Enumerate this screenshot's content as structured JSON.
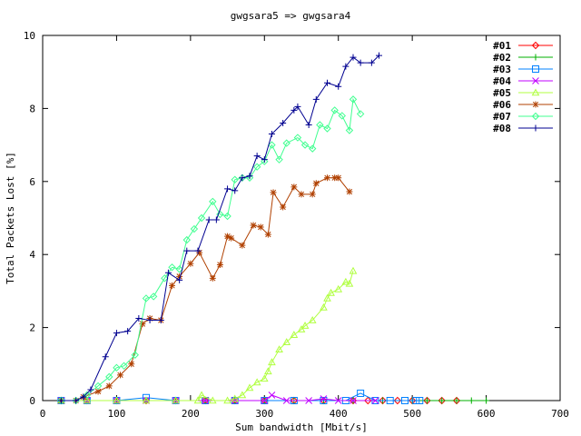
{
  "chart_data": {
    "type": "line",
    "title": "gwgsara5 => gwgsara4",
    "xlabel": "Sum bandwidth [Mbit/s]",
    "ylabel": "Total Packets Lost [%]",
    "xlim": [
      0,
      700
    ],
    "ylim": [
      0,
      10
    ],
    "x_ticks": [
      "0",
      "100",
      "200",
      "300",
      "400",
      "500",
      "600",
      "700"
    ],
    "y_ticks": [
      "0",
      "2",
      "4",
      "6",
      "8",
      "10"
    ],
    "grid": false,
    "legend_position": "top-right",
    "series": [
      {
        "name": "#01",
        "color": "#ff0000",
        "marker": "diamond",
        "points": [
          [
            25,
            0
          ],
          [
            60,
            0
          ],
          [
            100,
            0
          ],
          [
            140,
            0
          ],
          [
            180,
            0
          ],
          [
            220,
            0
          ],
          [
            260,
            0
          ],
          [
            300,
            0
          ],
          [
            340,
            0
          ],
          [
            380,
            0
          ],
          [
            420,
            0
          ],
          [
            440,
            0
          ],
          [
            460,
            0
          ],
          [
            480,
            0
          ],
          [
            500,
            0
          ],
          [
            520,
            0
          ],
          [
            540,
            0
          ],
          [
            560,
            0
          ]
        ]
      },
      {
        "name": "#02",
        "color": "#00b000",
        "marker": "plus",
        "points": [
          [
            25,
            0
          ],
          [
            60,
            0
          ],
          [
            100,
            0
          ],
          [
            140,
            0
          ],
          [
            180,
            0
          ],
          [
            220,
            0
          ],
          [
            260,
            0
          ],
          [
            300,
            0
          ],
          [
            340,
            0
          ],
          [
            380,
            0
          ],
          [
            420,
            0
          ],
          [
            460,
            0
          ],
          [
            500,
            0
          ],
          [
            520,
            0
          ],
          [
            540,
            0
          ],
          [
            560,
            0
          ],
          [
            580,
            0
          ],
          [
            600,
            0
          ]
        ]
      },
      {
        "name": "#03",
        "color": "#0080ff",
        "marker": "square",
        "points": [
          [
            25,
            0
          ],
          [
            60,
            0
          ],
          [
            100,
            0
          ],
          [
            140,
            0.08
          ],
          [
            180,
            0
          ],
          [
            220,
            0
          ],
          [
            260,
            0
          ],
          [
            300,
            0
          ],
          [
            340,
            0
          ],
          [
            380,
            0
          ],
          [
            410,
            0
          ],
          [
            430,
            0.2
          ],
          [
            450,
            0
          ],
          [
            470,
            0
          ],
          [
            490,
            0
          ],
          [
            505,
            0
          ],
          [
            510,
            0
          ]
        ]
      },
      {
        "name": "#04",
        "color": "#c000ff",
        "marker": "cross",
        "points": [
          [
            25,
            0
          ],
          [
            60,
            0
          ],
          [
            100,
            0
          ],
          [
            140,
            0
          ],
          [
            180,
            0
          ],
          [
            220,
            0
          ],
          [
            260,
            0
          ],
          [
            300,
            0
          ],
          [
            310,
            0.15
          ],
          [
            330,
            0
          ],
          [
            360,
            0
          ],
          [
            380,
            0.05
          ],
          [
            400,
            0
          ],
          [
            420,
            0
          ],
          [
            450,
            0
          ]
        ]
      },
      {
        "name": "#05",
        "color": "#b0ff40",
        "marker": "triangle",
        "points": [
          [
            25,
            0
          ],
          [
            60,
            0
          ],
          [
            100,
            0
          ],
          [
            140,
            0
          ],
          [
            180,
            0
          ],
          [
            210,
            0
          ],
          [
            215,
            0.15
          ],
          [
            230,
            0
          ],
          [
            250,
            0
          ],
          [
            260,
            0.05
          ],
          [
            270,
            0.15
          ],
          [
            280,
            0.35
          ],
          [
            290,
            0.5
          ],
          [
            300,
            0.6
          ],
          [
            305,
            0.8
          ],
          [
            310,
            1.05
          ],
          [
            320,
            1.4
          ],
          [
            330,
            1.6
          ],
          [
            340,
            1.8
          ],
          [
            350,
            1.95
          ],
          [
            355,
            2.05
          ],
          [
            365,
            2.2
          ],
          [
            380,
            2.55
          ],
          [
            385,
            2.8
          ],
          [
            390,
            2.95
          ],
          [
            400,
            3.05
          ],
          [
            410,
            3.25
          ],
          [
            415,
            3.2
          ],
          [
            420,
            3.55
          ]
        ]
      },
      {
        "name": "#06",
        "color": "#b04000",
        "marker": "star",
        "points": [
          [
            25,
            0
          ],
          [
            45,
            0
          ],
          [
            55,
            0.1
          ],
          [
            75,
            0.25
          ],
          [
            90,
            0.4
          ],
          [
            105,
            0.7
          ],
          [
            120,
            1.0
          ],
          [
            135,
            2.1
          ],
          [
            145,
            2.25
          ],
          [
            160,
            2.2
          ],
          [
            175,
            3.15
          ],
          [
            185,
            3.4
          ],
          [
            200,
            3.75
          ],
          [
            212,
            4.05
          ],
          [
            230,
            3.35
          ],
          [
            240,
            3.72
          ],
          [
            250,
            4.5
          ],
          [
            255,
            4.45
          ],
          [
            270,
            4.25
          ],
          [
            285,
            4.8
          ],
          [
            295,
            4.75
          ],
          [
            305,
            4.55
          ],
          [
            312,
            5.7
          ],
          [
            325,
            5.3
          ],
          [
            340,
            5.85
          ],
          [
            350,
            5.65
          ],
          [
            365,
            5.65
          ],
          [
            370,
            5.95
          ],
          [
            385,
            6.1
          ],
          [
            395,
            6.1
          ],
          [
            400,
            6.1
          ],
          [
            415,
            5.72
          ]
        ]
      },
      {
        "name": "#07",
        "color": "#40ff90",
        "marker": "diamond",
        "points": [
          [
            25,
            0
          ],
          [
            45,
            0
          ],
          [
            60,
            0.15
          ],
          [
            75,
            0.4
          ],
          [
            90,
            0.65
          ],
          [
            100,
            0.9
          ],
          [
            110,
            0.95
          ],
          [
            125,
            1.25
          ],
          [
            140,
            2.8
          ],
          [
            150,
            2.85
          ],
          [
            165,
            3.35
          ],
          [
            175,
            3.65
          ],
          [
            185,
            3.6
          ],
          [
            195,
            4.4
          ],
          [
            205,
            4.7
          ],
          [
            215,
            5.0
          ],
          [
            230,
            5.45
          ],
          [
            240,
            5.1
          ],
          [
            250,
            5.05
          ],
          [
            260,
            6.05
          ],
          [
            270,
            6.1
          ],
          [
            280,
            6.1
          ],
          [
            290,
            6.4
          ],
          [
            300,
            6.55
          ],
          [
            310,
            7.0
          ],
          [
            320,
            6.6
          ],
          [
            330,
            7.05
          ],
          [
            345,
            7.2
          ],
          [
            355,
            7.0
          ],
          [
            365,
            6.9
          ],
          [
            375,
            7.55
          ],
          [
            385,
            7.45
          ],
          [
            395,
            7.95
          ],
          [
            405,
            7.8
          ],
          [
            415,
            7.4
          ],
          [
            420,
            8.25
          ],
          [
            430,
            7.85
          ]
        ]
      },
      {
        "name": "#08",
        "color": "#000090",
        "marker": "plus",
        "points": [
          [
            25,
            0
          ],
          [
            45,
            0
          ],
          [
            55,
            0.1
          ],
          [
            65,
            0.3
          ],
          [
            85,
            1.2
          ],
          [
            100,
            1.85
          ],
          [
            115,
            1.9
          ],
          [
            130,
            2.25
          ],
          [
            145,
            2.2
          ],
          [
            160,
            2.2
          ],
          [
            170,
            3.5
          ],
          [
            185,
            3.3
          ],
          [
            195,
            4.1
          ],
          [
            210,
            4.1
          ],
          [
            225,
            4.95
          ],
          [
            235,
            4.95
          ],
          [
            250,
            5.8
          ],
          [
            260,
            5.75
          ],
          [
            270,
            6.1
          ],
          [
            280,
            6.15
          ],
          [
            290,
            6.7
          ],
          [
            300,
            6.6
          ],
          [
            310,
            7.3
          ],
          [
            325,
            7.6
          ],
          [
            340,
            7.95
          ],
          [
            345,
            8.05
          ],
          [
            360,
            7.55
          ],
          [
            370,
            8.25
          ],
          [
            385,
            8.7
          ],
          [
            400,
            8.6
          ],
          [
            410,
            9.15
          ],
          [
            420,
            9.4
          ],
          [
            430,
            9.25
          ],
          [
            445,
            9.25
          ],
          [
            455,
            9.45
          ]
        ]
      }
    ]
  }
}
